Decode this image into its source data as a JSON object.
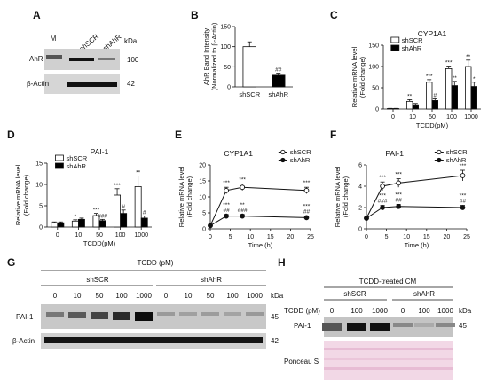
{
  "panel_letters": [
    "A",
    "B",
    "C",
    "D",
    "E",
    "F",
    "G",
    "H"
  ],
  "blotA": {
    "lanes": [
      "M",
      "shSCR",
      "shAhR"
    ],
    "kda_label": "kDa",
    "rows": [
      {
        "label": "AhR",
        "kda": "100"
      },
      {
        "label": "β-Actin",
        "kda": "42"
      }
    ]
  },
  "blotG": {
    "treatment": "TCDD (pM)",
    "groups": [
      "shSCR",
      "shAhR"
    ],
    "doses": [
      "0",
      "10",
      "50",
      "100",
      "1000",
      "0",
      "10",
      "50",
      "100",
      "1000"
    ],
    "kda_label": "kDa",
    "rows": [
      {
        "label": "PAI-1",
        "kda": "45"
      },
      {
        "label": "β-Actin",
        "kda": "42"
      }
    ]
  },
  "blotH": {
    "treatment": "TCDD-treated CM",
    "groups": [
      "shSCR",
      "shAhR"
    ],
    "dose_label": "TCDD (pM)",
    "doses": [
      "0",
      "100",
      "1000",
      "0",
      "100",
      "1000"
    ],
    "kda_label": "kDa",
    "rows": [
      {
        "label": "PAI-1",
        "kda": "45"
      },
      {
        "label": "Ponceau S",
        "kda": ""
      }
    ]
  },
  "chart_data": [
    {
      "panel": "B",
      "type": "bar",
      "ylabel": "AhR Band Intensity (Normalized to β-Actin)",
      "ylabel_lines": [
        "AhR Band Intensity",
        "(Normalized to β-Actin)"
      ],
      "categories": [
        "shSCR",
        "shAhR"
      ],
      "values": [
        100,
        29
      ],
      "errors": [
        12,
        5
      ],
      "fills": [
        "#ffffff",
        "#000000"
      ],
      "annotations": [
        "",
        "##"
      ],
      "ylim": [
        0,
        150
      ],
      "yticks": [
        0,
        50,
        100,
        150
      ]
    },
    {
      "panel": "C",
      "type": "bar",
      "title": "CYP1A1",
      "xlabel": "TCDD(pM)",
      "ylabel": "Relative mRNA level (Fold change)",
      "ylabel_lines": [
        "Relative mRNA level",
        "(Fold change)"
      ],
      "categories": [
        "0",
        "10",
        "50",
        "100",
        "1000"
      ],
      "series": [
        {
          "name": "shSCR",
          "fill": "#ffffff",
          "values": [
            1,
            18,
            63,
            95,
            100
          ],
          "errors": [
            0.5,
            4,
            6,
            6,
            15
          ],
          "annotations": [
            "",
            "**",
            "***",
            "***",
            "**"
          ]
        },
        {
          "name": "shAhR",
          "fill": "#000000",
          "values": [
            1,
            10,
            20,
            55,
            53
          ],
          "errors": [
            0.5,
            3,
            4,
            10,
            10
          ],
          "annotations": [
            "",
            "",
            "#",
            "**",
            "*"
          ]
        }
      ],
      "ylim": [
        0,
        150
      ],
      "yticks": [
        0,
        50,
        100,
        150
      ]
    },
    {
      "panel": "D",
      "type": "bar",
      "title": "PAI-1",
      "xlabel": "TCDD(pM)",
      "ylabel": "Relative mRNA level (Fold change)",
      "ylabel_lines": [
        "Relative mRNA level",
        "(Fold change)"
      ],
      "categories": [
        "0",
        "10",
        "50",
        "100",
        "1000"
      ],
      "series": [
        {
          "name": "shSCR",
          "fill": "#ffffff",
          "values": [
            1,
            1.4,
            2.7,
            7.5,
            9.5
          ],
          "errors": [
            0.2,
            0.3,
            0.5,
            1.5,
            2.5
          ],
          "annotations": [
            "",
            "*",
            "***",
            "***",
            "**"
          ]
        },
        {
          "name": "shAhR",
          "fill": "#000000",
          "values": [
            1,
            1.8,
            1.5,
            3.2,
            2.1
          ],
          "errors": [
            0.2,
            0.3,
            0.3,
            0.8,
            0.5
          ],
          "annotations": [
            "",
            "",
            "###",
            "#",
            "#"
          ]
        }
      ],
      "ylim": [
        0,
        15
      ],
      "yticks": [
        0,
        5,
        10,
        15
      ]
    },
    {
      "panel": "E",
      "type": "line",
      "title": "CYP1A1",
      "xlabel": "Time (h)",
      "ylabel": "Relative mRNA level (Fold change)",
      "ylabel_lines": [
        "Relative mRNA level",
        "(Fold change)"
      ],
      "x": [
        0,
        4,
        8,
        24
      ],
      "series": [
        {
          "name": "shSCR",
          "marker": "open",
          "values": [
            1,
            12,
            13,
            12
          ],
          "errors": [
            0,
            1,
            1,
            1
          ],
          "annotations": [
            "",
            "***",
            "***",
            "***"
          ]
        },
        {
          "name": "shAhR",
          "marker": "filled",
          "values": [
            1,
            4,
            4,
            3.5
          ],
          "errors": [
            0,
            0.5,
            0.5,
            0.5
          ],
          "annotations": [
            "",
            "***\n##",
            "**\n###",
            "***\n##"
          ]
        }
      ],
      "xlim": [
        0,
        25
      ],
      "xticks": [
        0,
        5,
        10,
        15,
        20,
        25
      ],
      "ylim": [
        0,
        20
      ],
      "yticks": [
        0,
        5,
        10,
        15,
        20
      ]
    },
    {
      "panel": "F",
      "type": "line",
      "title": "PAI-1",
      "xlabel": "Time (h)",
      "ylabel": "Relative mRNA level (Fold change)",
      "ylabel_lines": [
        "Relative mRNA level",
        "(Fold change)"
      ],
      "x": [
        0,
        4,
        8,
        24
      ],
      "series": [
        {
          "name": "shSCR",
          "marker": "open",
          "values": [
            1,
            4,
            4.3,
            5
          ],
          "errors": [
            0,
            0.4,
            0.4,
            0.5
          ],
          "annotations": [
            "",
            "***",
            "***",
            "***"
          ]
        },
        {
          "name": "shAhR",
          "marker": "filled",
          "values": [
            1,
            2,
            2.1,
            2
          ],
          "errors": [
            0,
            0.2,
            0.2,
            0.2
          ],
          "annotations": [
            "",
            "***\n###",
            "***\n##",
            "***\n##"
          ]
        }
      ],
      "xlim": [
        0,
        25
      ],
      "xticks": [
        0,
        5,
        10,
        15,
        20,
        25
      ],
      "ylim": [
        0,
        6
      ],
      "yticks": [
        0,
        2,
        4,
        6
      ]
    }
  ]
}
